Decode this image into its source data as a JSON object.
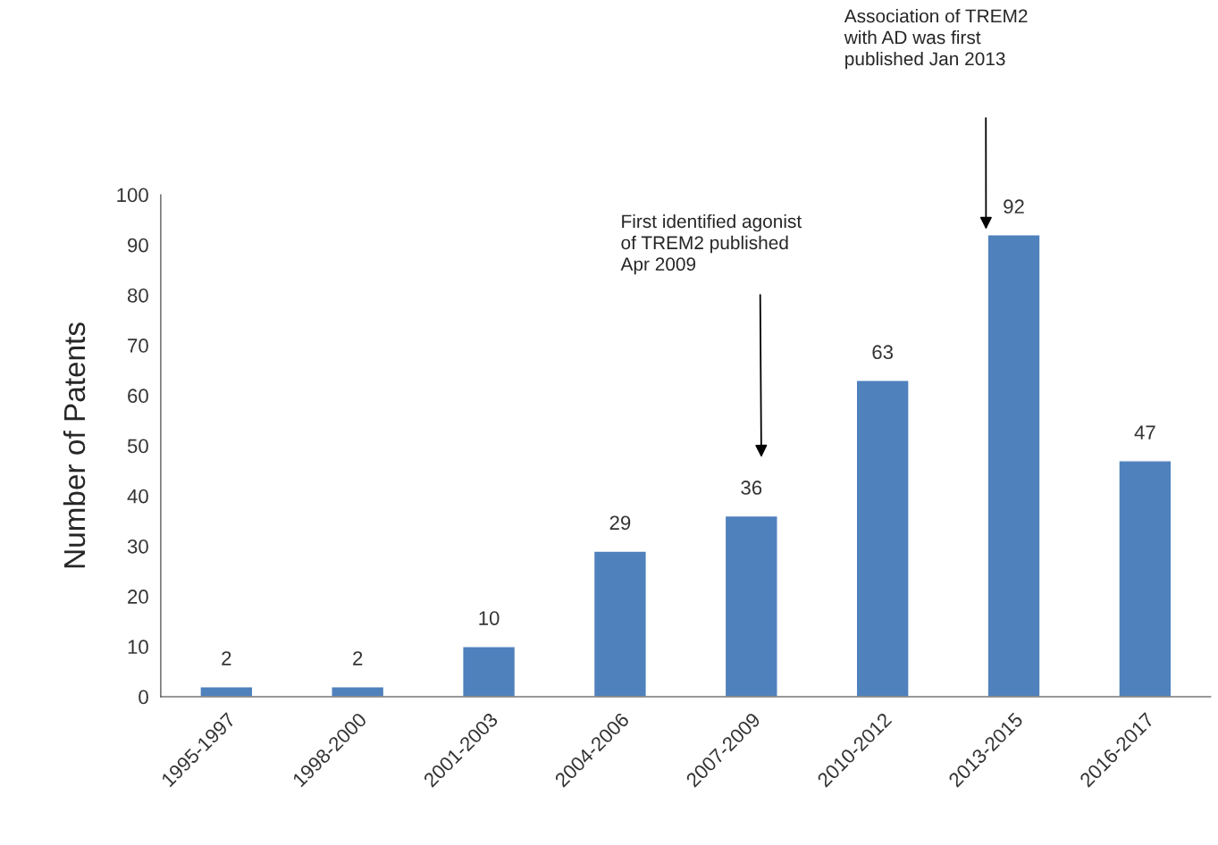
{
  "chart_data": {
    "type": "bar",
    "ylabel": "Number of Patents",
    "categories": [
      "1995-1997",
      "1998-2000",
      "2001-2003",
      "2004-2006",
      "2007-2009",
      "2010-2012",
      "2013-2015",
      "2016-2017"
    ],
    "values": [
      2,
      2,
      10,
      29,
      36,
      63,
      92,
      47
    ],
    "color": "#4f81bd",
    "ylim": [
      0,
      100
    ],
    "yticks": [
      0,
      10,
      20,
      30,
      40,
      50,
      60,
      70,
      80,
      90,
      100
    ],
    "data_labels": true,
    "grid": false,
    "annotations": [
      "First identified agonist\nof TREM2 published\nApr 2009",
      "Association of TREM2\nwith AD was first\npublished Jan 2013"
    ]
  }
}
